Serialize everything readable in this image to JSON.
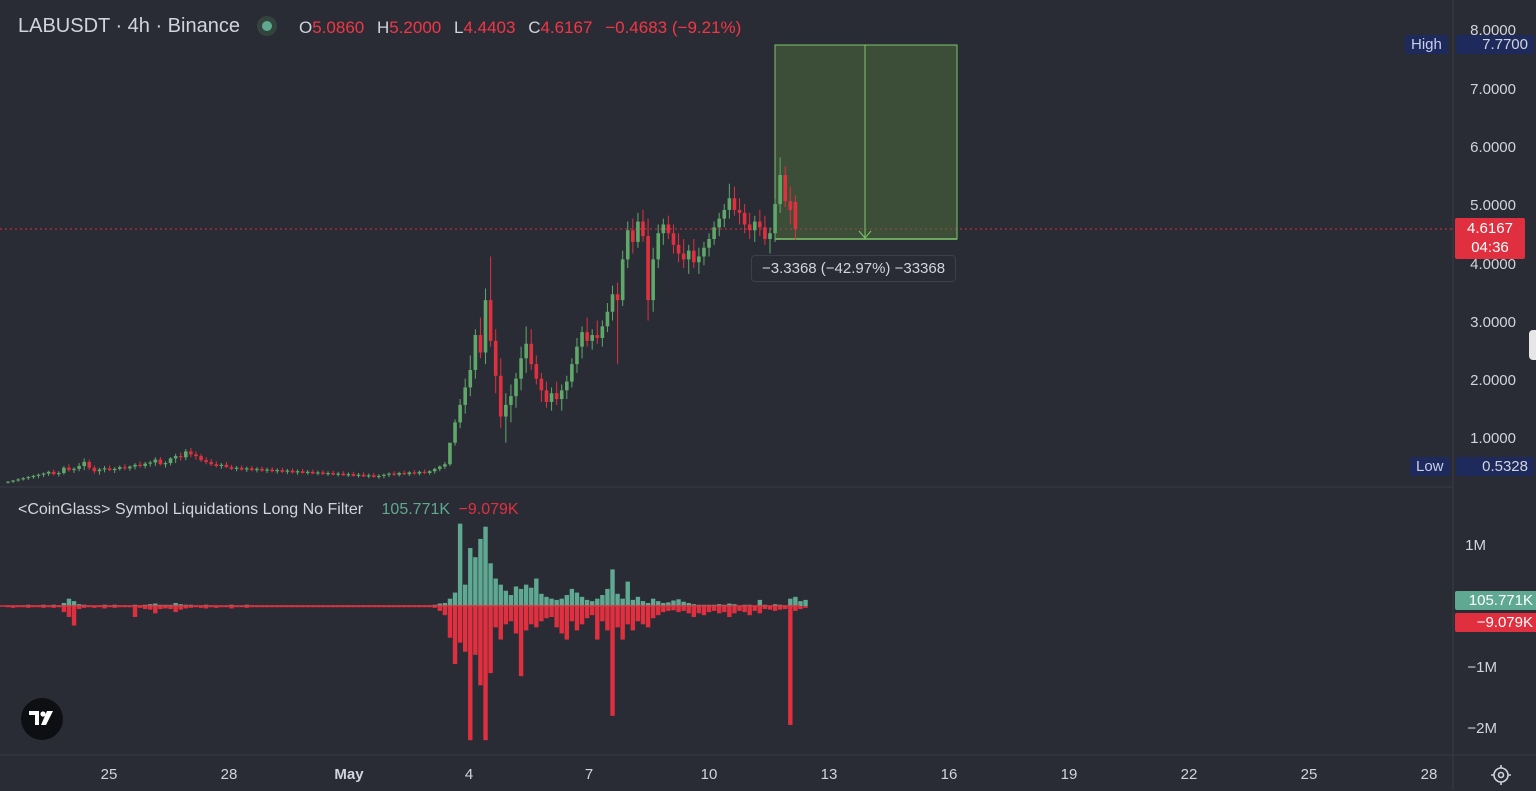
{
  "header": {
    "symbol": "LABUSDT · 4h · Binance",
    "open_label": "O",
    "open": "5.0860",
    "high_label": "H",
    "high": "5.2000",
    "low_label": "L",
    "low": "4.4403",
    "close_label": "C",
    "close": "4.6167",
    "change": "−0.4683 (−9.21%)"
  },
  "price_scale": {
    "ticks": [
      "8.0000",
      "7.0000",
      "6.0000",
      "5.0000",
      "4.0000",
      "3.0000",
      "2.0000",
      "1.0000"
    ],
    "high_label": "High",
    "high_value": "7.7700",
    "low_label": "Low",
    "low_value": "0.5328",
    "current_price": "4.6167",
    "countdown": "04:36"
  },
  "measure": {
    "label": "−3.3368 (−42.97%) −33368"
  },
  "indicator": {
    "title": "<CoinGlass> Symbol Liquidations Long No Filter",
    "value_up": "105.771K",
    "value_down": "−9.079K",
    "ticks": [
      "1M",
      "−1M",
      "−2M"
    ],
    "tag_up": "105.771K",
    "tag_down": "−9.079K"
  },
  "time_axis": {
    "labels": [
      "25",
      "28",
      "May",
      "4",
      "7",
      "10",
      "13",
      "16",
      "19",
      "22",
      "25",
      "28"
    ]
  },
  "colors": {
    "up": "#5fa86a",
    "down": "#e0303f",
    "ind_up": "#5fa891",
    "background": "#2a2c35",
    "price_tag": "#e0303f",
    "highlow_tag": "#1e2a5c"
  },
  "chart_data": {
    "type": "candlestick",
    "series_ohlc": [
      [
        0.27,
        0.29,
        0.25,
        0.28
      ],
      [
        0.28,
        0.31,
        0.26,
        0.3
      ],
      [
        0.3,
        0.34,
        0.28,
        0.32
      ],
      [
        0.32,
        0.36,
        0.3,
        0.34
      ],
      [
        0.34,
        0.38,
        0.31,
        0.36
      ],
      [
        0.36,
        0.4,
        0.33,
        0.38
      ],
      [
        0.38,
        0.42,
        0.34,
        0.4
      ],
      [
        0.4,
        0.44,
        0.36,
        0.42
      ],
      [
        0.42,
        0.47,
        0.38,
        0.45
      ],
      [
        0.45,
        0.49,
        0.39,
        0.41
      ],
      [
        0.41,
        0.46,
        0.37,
        0.43
      ],
      [
        0.43,
        0.55,
        0.4,
        0.52
      ],
      [
        0.52,
        0.58,
        0.45,
        0.48
      ],
      [
        0.48,
        0.53,
        0.43,
        0.5
      ],
      [
        0.5,
        0.6,
        0.46,
        0.55
      ],
      [
        0.55,
        0.68,
        0.48,
        0.62
      ],
      [
        0.62,
        0.66,
        0.48,
        0.52
      ],
      [
        0.52,
        0.56,
        0.42,
        0.46
      ],
      [
        0.46,
        0.52,
        0.4,
        0.49
      ],
      [
        0.49,
        0.55,
        0.44,
        0.51
      ],
      [
        0.51,
        0.56,
        0.46,
        0.48
      ],
      [
        0.48,
        0.53,
        0.43,
        0.5
      ],
      [
        0.5,
        0.56,
        0.47,
        0.53
      ],
      [
        0.53,
        0.58,
        0.48,
        0.51
      ],
      [
        0.51,
        0.56,
        0.47,
        0.54
      ],
      [
        0.54,
        0.6,
        0.49,
        0.57
      ],
      [
        0.57,
        0.63,
        0.52,
        0.55
      ],
      [
        0.55,
        0.62,
        0.51,
        0.59
      ],
      [
        0.59,
        0.64,
        0.54,
        0.61
      ],
      [
        0.61,
        0.7,
        0.55,
        0.66
      ],
      [
        0.66,
        0.7,
        0.56,
        0.58
      ],
      [
        0.58,
        0.63,
        0.52,
        0.6
      ],
      [
        0.6,
        0.7,
        0.56,
        0.68
      ],
      [
        0.68,
        0.76,
        0.6,
        0.72
      ],
      [
        0.72,
        0.78,
        0.64,
        0.7
      ],
      [
        0.7,
        0.84,
        0.65,
        0.8
      ],
      [
        0.8,
        0.86,
        0.7,
        0.75
      ],
      [
        0.75,
        0.8,
        0.66,
        0.72
      ],
      [
        0.72,
        0.76,
        0.62,
        0.65
      ],
      [
        0.65,
        0.7,
        0.58,
        0.62
      ],
      [
        0.62,
        0.67,
        0.55,
        0.58
      ],
      [
        0.58,
        0.63,
        0.52,
        0.55
      ],
      [
        0.55,
        0.6,
        0.5,
        0.57
      ],
      [
        0.57,
        0.62,
        0.52,
        0.53
      ],
      [
        0.53,
        0.57,
        0.48,
        0.5
      ],
      [
        0.5,
        0.55,
        0.46,
        0.52
      ],
      [
        0.52,
        0.56,
        0.47,
        0.49
      ],
      [
        0.49,
        0.54,
        0.45,
        0.51
      ],
      [
        0.51,
        0.55,
        0.46,
        0.48
      ],
      [
        0.48,
        0.53,
        0.44,
        0.5
      ],
      [
        0.5,
        0.54,
        0.45,
        0.47
      ],
      [
        0.47,
        0.52,
        0.43,
        0.49
      ],
      [
        0.49,
        0.53,
        0.44,
        0.46
      ],
      [
        0.46,
        0.51,
        0.42,
        0.48
      ],
      [
        0.48,
        0.52,
        0.43,
        0.45
      ],
      [
        0.45,
        0.5,
        0.41,
        0.47
      ],
      [
        0.47,
        0.51,
        0.42,
        0.44
      ],
      [
        0.44,
        0.49,
        0.4,
        0.46
      ],
      [
        0.46,
        0.5,
        0.42,
        0.43
      ],
      [
        0.43,
        0.48,
        0.4,
        0.45
      ],
      [
        0.45,
        0.49,
        0.41,
        0.42
      ],
      [
        0.42,
        0.47,
        0.39,
        0.44
      ],
      [
        0.44,
        0.48,
        0.4,
        0.41
      ],
      [
        0.41,
        0.46,
        0.38,
        0.43
      ],
      [
        0.43,
        0.47,
        0.39,
        0.4
      ],
      [
        0.4,
        0.45,
        0.37,
        0.42
      ],
      [
        0.42,
        0.46,
        0.38,
        0.39
      ],
      [
        0.39,
        0.44,
        0.36,
        0.41
      ],
      [
        0.41,
        0.45,
        0.37,
        0.38
      ],
      [
        0.38,
        0.43,
        0.35,
        0.4
      ],
      [
        0.4,
        0.44,
        0.36,
        0.37
      ],
      [
        0.37,
        0.42,
        0.34,
        0.39
      ],
      [
        0.39,
        0.43,
        0.35,
        0.36
      ],
      [
        0.36,
        0.41,
        0.33,
        0.38
      ],
      [
        0.38,
        0.42,
        0.34,
        0.4
      ],
      [
        0.4,
        0.44,
        0.36,
        0.42
      ],
      [
        0.42,
        0.46,
        0.38,
        0.4
      ],
      [
        0.4,
        0.45,
        0.37,
        0.43
      ],
      [
        0.43,
        0.47,
        0.39,
        0.41
      ],
      [
        0.41,
        0.46,
        0.38,
        0.44
      ],
      [
        0.44,
        0.48,
        0.4,
        0.42
      ],
      [
        0.42,
        0.47,
        0.39,
        0.45
      ],
      [
        0.45,
        0.49,
        0.41,
        0.43
      ],
      [
        0.43,
        0.48,
        0.4,
        0.46
      ],
      [
        0.46,
        0.52,
        0.42,
        0.5
      ],
      [
        0.5,
        0.56,
        0.46,
        0.54
      ],
      [
        0.54,
        0.62,
        0.5,
        0.58
      ],
      [
        0.58,
        0.72,
        0.55,
        0.95
      ],
      [
        0.95,
        1.35,
        0.9,
        1.3
      ],
      [
        1.3,
        1.7,
        1.2,
        1.6
      ],
      [
        1.6,
        2.05,
        1.45,
        1.9
      ],
      [
        1.9,
        2.45,
        1.75,
        2.2
      ],
      [
        2.2,
        2.9,
        2.05,
        2.8
      ],
      [
        2.8,
        3.1,
        2.4,
        2.5
      ],
      [
        2.5,
        3.6,
        2.3,
        3.4
      ],
      [
        3.4,
        4.15,
        2.6,
        2.7
      ],
      [
        2.7,
        2.9,
        1.8,
        2.1
      ],
      [
        2.1,
        2.4,
        1.2,
        1.4
      ],
      [
        1.4,
        1.8,
        0.95,
        1.6
      ],
      [
        1.6,
        1.95,
        1.3,
        1.75
      ],
      [
        1.75,
        2.15,
        1.55,
        2.05
      ],
      [
        2.05,
        2.6,
        1.85,
        2.4
      ],
      [
        2.4,
        2.95,
        2.15,
        2.65
      ],
      [
        2.65,
        2.9,
        2.2,
        2.3
      ],
      [
        2.3,
        2.45,
        1.95,
        2.05
      ],
      [
        2.05,
        2.15,
        1.65,
        1.85
      ],
      [
        1.85,
        2.0,
        1.55,
        1.65
      ],
      [
        1.65,
        1.9,
        1.5,
        1.8
      ],
      [
        1.8,
        2.0,
        1.6,
        1.7
      ],
      [
        1.7,
        1.95,
        1.5,
        1.85
      ],
      [
        1.85,
        2.1,
        1.7,
        2.0
      ],
      [
        2.0,
        2.4,
        1.9,
        2.3
      ],
      [
        2.3,
        2.75,
        2.15,
        2.6
      ],
      [
        2.6,
        2.95,
        2.4,
        2.85
      ],
      [
        2.85,
        3.1,
        2.6,
        2.7
      ],
      [
        2.7,
        2.9,
        2.55,
        2.8
      ],
      [
        2.8,
        3.05,
        2.65,
        2.75
      ],
      [
        2.75,
        3.05,
        2.6,
        2.95
      ],
      [
        2.95,
        3.35,
        2.85,
        3.2
      ],
      [
        3.2,
        3.65,
        3.05,
        3.5
      ],
      [
        3.5,
        3.7,
        2.3,
        3.4
      ],
      [
        3.4,
        4.25,
        3.3,
        4.1
      ],
      [
        4.1,
        4.75,
        3.95,
        4.6
      ],
      [
        4.6,
        4.8,
        4.2,
        4.4
      ],
      [
        4.4,
        4.9,
        4.3,
        4.75
      ],
      [
        4.75,
        4.95,
        4.4,
        4.5
      ],
      [
        4.5,
        4.8,
        3.05,
        3.4
      ],
      [
        3.4,
        4.3,
        3.2,
        4.1
      ],
      [
        4.1,
        4.7,
        3.95,
        4.55
      ],
      [
        4.55,
        4.8,
        4.35,
        4.7
      ],
      [
        4.7,
        4.85,
        4.45,
        4.55
      ],
      [
        4.55,
        4.7,
        4.2,
        4.35
      ],
      [
        4.35,
        4.55,
        4.05,
        4.2
      ],
      [
        4.2,
        4.45,
        3.95,
        4.1
      ],
      [
        4.1,
        4.35,
        3.85,
        4.25
      ],
      [
        4.25,
        4.45,
        3.95,
        4.05
      ],
      [
        4.05,
        4.3,
        3.85,
        4.15
      ],
      [
        4.15,
        4.4,
        4.0,
        4.3
      ],
      [
        4.3,
        4.55,
        4.15,
        4.45
      ],
      [
        4.45,
        4.75,
        4.35,
        4.65
      ],
      [
        4.65,
        4.9,
        4.5,
        4.8
      ],
      [
        4.8,
        5.05,
        4.65,
        4.95
      ],
      [
        4.95,
        5.4,
        4.8,
        5.15
      ],
      [
        5.15,
        5.35,
        4.85,
        4.95
      ],
      [
        4.95,
        5.15,
        4.7,
        4.9
      ],
      [
        4.9,
        5.05,
        4.55,
        4.7
      ],
      [
        4.7,
        4.9,
        4.45,
        4.6
      ],
      [
        4.6,
        4.85,
        4.4,
        4.75
      ],
      [
        4.75,
        4.95,
        4.5,
        4.65
      ],
      [
        4.65,
        4.85,
        4.35,
        4.45
      ],
      [
        4.45,
        4.65,
        4.2,
        4.55
      ],
      [
        4.55,
        5.15,
        4.4,
        5.05
      ],
      [
        5.05,
        5.85,
        4.9,
        5.55
      ],
      [
        5.55,
        5.7,
        5.0,
        5.1
      ],
      [
        5.1,
        5.35,
        4.7,
        4.95
      ],
      [
        5.086,
        5.2,
        4.4403,
        4.6167
      ]
    ],
    "liquidations_up": [
      0.01,
      0.01,
      0.01,
      0.01,
      0.02,
      0.01,
      0.01,
      0.02,
      0.01,
      0.02,
      0.01,
      0.05,
      0.12,
      0.08,
      0.03,
      0.02,
      0.01,
      0.01,
      0.01,
      0.02,
      0.01,
      0.02,
      0.01,
      0.01,
      0.01,
      0.02,
      0.01,
      0.02,
      0.03,
      0.04,
      0.02,
      0.02,
      0.02,
      0.05,
      0.03,
      0.02,
      0.02,
      0.01,
      0.01,
      0.02,
      0.01,
      0.01,
      0.01,
      0.01,
      0.02,
      0.01,
      0.01,
      0.02,
      0.01,
      0.01,
      0.01,
      0.01,
      0.01,
      0.01,
      0.01,
      0.01,
      0.01,
      0.01,
      0.01,
      0.01,
      0.01,
      0.01,
      0.01,
      0.01,
      0.01,
      0.01,
      0.01,
      0.01,
      0.01,
      0.01,
      0.01,
      0.01,
      0.01,
      0.01,
      0.01,
      0.01,
      0.01,
      0.01,
      0.01,
      0.01,
      0.01,
      0.01,
      0.01,
      0.01,
      0.02,
      0.04,
      0.05,
      0.12,
      0.22,
      1.35,
      0.35,
      0.95,
      0.8,
      1.1,
      1.3,
      0.7,
      0.45,
      0.35,
      0.25,
      0.18,
      0.32,
      0.28,
      0.35,
      0.3,
      0.45,
      0.2,
      0.15,
      0.12,
      0.1,
      0.12,
      0.18,
      0.28,
      0.22,
      0.15,
      0.1,
      0.08,
      0.12,
      0.18,
      0.28,
      0.6,
      0.2,
      0.12,
      0.4,
      0.1,
      0.15,
      0.08,
      0.05,
      0.12,
      0.08,
      0.05,
      0.06,
      0.09,
      0.11,
      0.07,
      0.05,
      0.03,
      0.02,
      0.02,
      0.02,
      0.02,
      0.03,
      0.02,
      0.04,
      0.03,
      0.01,
      0.02,
      0.02,
      0.01,
      0.1,
      0.02,
      0.01,
      0.03,
      0.02,
      0.01,
      0.12,
      0.15,
      0.08,
      0.1
    ],
    "liquidations_down": [
      0.02,
      0.03,
      0.02,
      0.02,
      0.03,
      0.02,
      0.02,
      0.03,
      0.02,
      0.03,
      0.02,
      0.1,
      0.18,
      0.32,
      0.05,
      0.03,
      0.02,
      0.03,
      0.02,
      0.04,
      0.02,
      0.03,
      0.02,
      0.02,
      0.02,
      0.18,
      0.03,
      0.05,
      0.06,
      0.12,
      0.05,
      0.04,
      0.05,
      0.1,
      0.06,
      0.04,
      0.03,
      0.02,
      0.03,
      0.04,
      0.02,
      0.03,
      0.02,
      0.02,
      0.04,
      0.02,
      0.02,
      0.03,
      0.02,
      0.02,
      0.02,
      0.02,
      0.02,
      0.02,
      0.02,
      0.02,
      0.02,
      0.02,
      0.02,
      0.02,
      0.02,
      0.02,
      0.02,
      0.02,
      0.02,
      0.02,
      0.02,
      0.02,
      0.02,
      0.02,
      0.02,
      0.02,
      0.02,
      0.02,
      0.02,
      0.02,
      0.02,
      0.02,
      0.02,
      0.02,
      0.02,
      0.02,
      0.02,
      0.02,
      0.03,
      0.08,
      0.15,
      0.52,
      0.95,
      0.6,
      0.75,
      2.2,
      0.8,
      1.3,
      2.2,
      1.1,
      0.35,
      0.55,
      0.3,
      0.25,
      0.45,
      1.15,
      0.4,
      0.3,
      0.35,
      0.25,
      0.2,
      0.18,
      0.35,
      0.45,
      0.55,
      0.25,
      0.4,
      0.3,
      0.2,
      0.15,
      0.55,
      0.25,
      0.4,
      1.8,
      0.35,
      0.55,
      0.3,
      0.4,
      0.25,
      0.3,
      0.35,
      0.2,
      0.15,
      0.1,
      0.08,
      0.07,
      0.1,
      0.08,
      0.12,
      0.18,
      0.12,
      0.15,
      0.1,
      0.08,
      0.12,
      0.1,
      0.18,
      0.12,
      0.08,
      0.1,
      0.15,
      0.08,
      0.12,
      0.05,
      0.06,
      0.08,
      0.06,
      0.05,
      1.95,
      0.08,
      0.05,
      0.03
    ]
  }
}
